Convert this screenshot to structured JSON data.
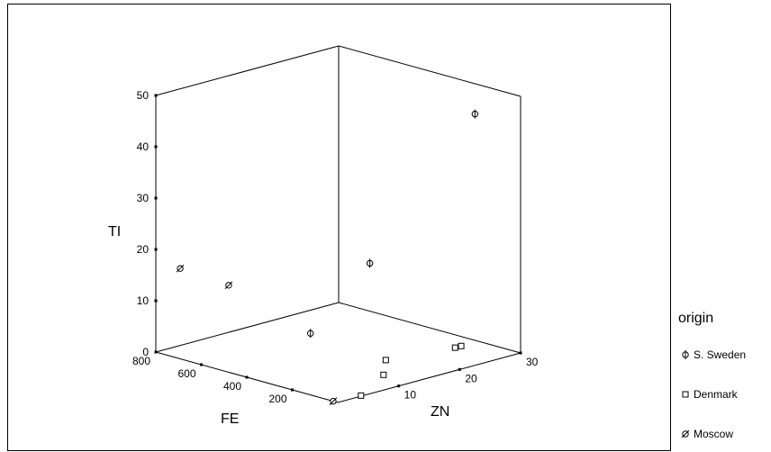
{
  "chart_data": {
    "type": "scatter",
    "title": "",
    "axes": {
      "x": {
        "label": "FE",
        "ticks": [
          800,
          600,
          400,
          200
        ],
        "range": [
          0,
          800
        ]
      },
      "y": {
        "label": "ZN",
        "ticks": [
          10,
          20,
          30
        ],
        "range": [
          0,
          30
        ]
      },
      "z": {
        "label": "TI",
        "ticks": [
          0,
          10,
          20,
          30,
          40,
          50
        ],
        "range": [
          0,
          50
        ]
      }
    },
    "legend": {
      "title": "origin",
      "placement": "right",
      "entries": [
        "S. Sweden",
        "Denmark",
        "Moscow"
      ]
    },
    "series": [
      {
        "name": "S. Sweden",
        "marker": "circle-bar",
        "points": [
          {
            "fe": 40,
            "zn": 24,
            "ti": 48
          },
          {
            "fe": 100,
            "zn": 9,
            "ti": 23
          },
          {
            "fe": 120,
            "zn": 0,
            "ti": 12
          }
        ]
      },
      {
        "name": "Denmark",
        "marker": "square",
        "points": [
          {
            "fe": 5,
            "zn": 4,
            "ti": 0
          },
          {
            "fe": 40,
            "zn": 9,
            "ti": 2
          },
          {
            "fe": 30,
            "zn": 9,
            "ti": 5
          },
          {
            "fe": 20,
            "zn": 20,
            "ti": 4
          },
          {
            "fe": 20,
            "zn": 21,
            "ti": 4
          }
        ]
      },
      {
        "name": "Moscow",
        "marker": "circle-slash",
        "points": [
          {
            "fe": 800,
            "zn": 4,
            "ti": 15
          },
          {
            "fe": 560,
            "zn": 3,
            "ti": 15
          },
          {
            "fe": 20,
            "zn": 0,
            "ti": 0
          }
        ]
      }
    ]
  }
}
